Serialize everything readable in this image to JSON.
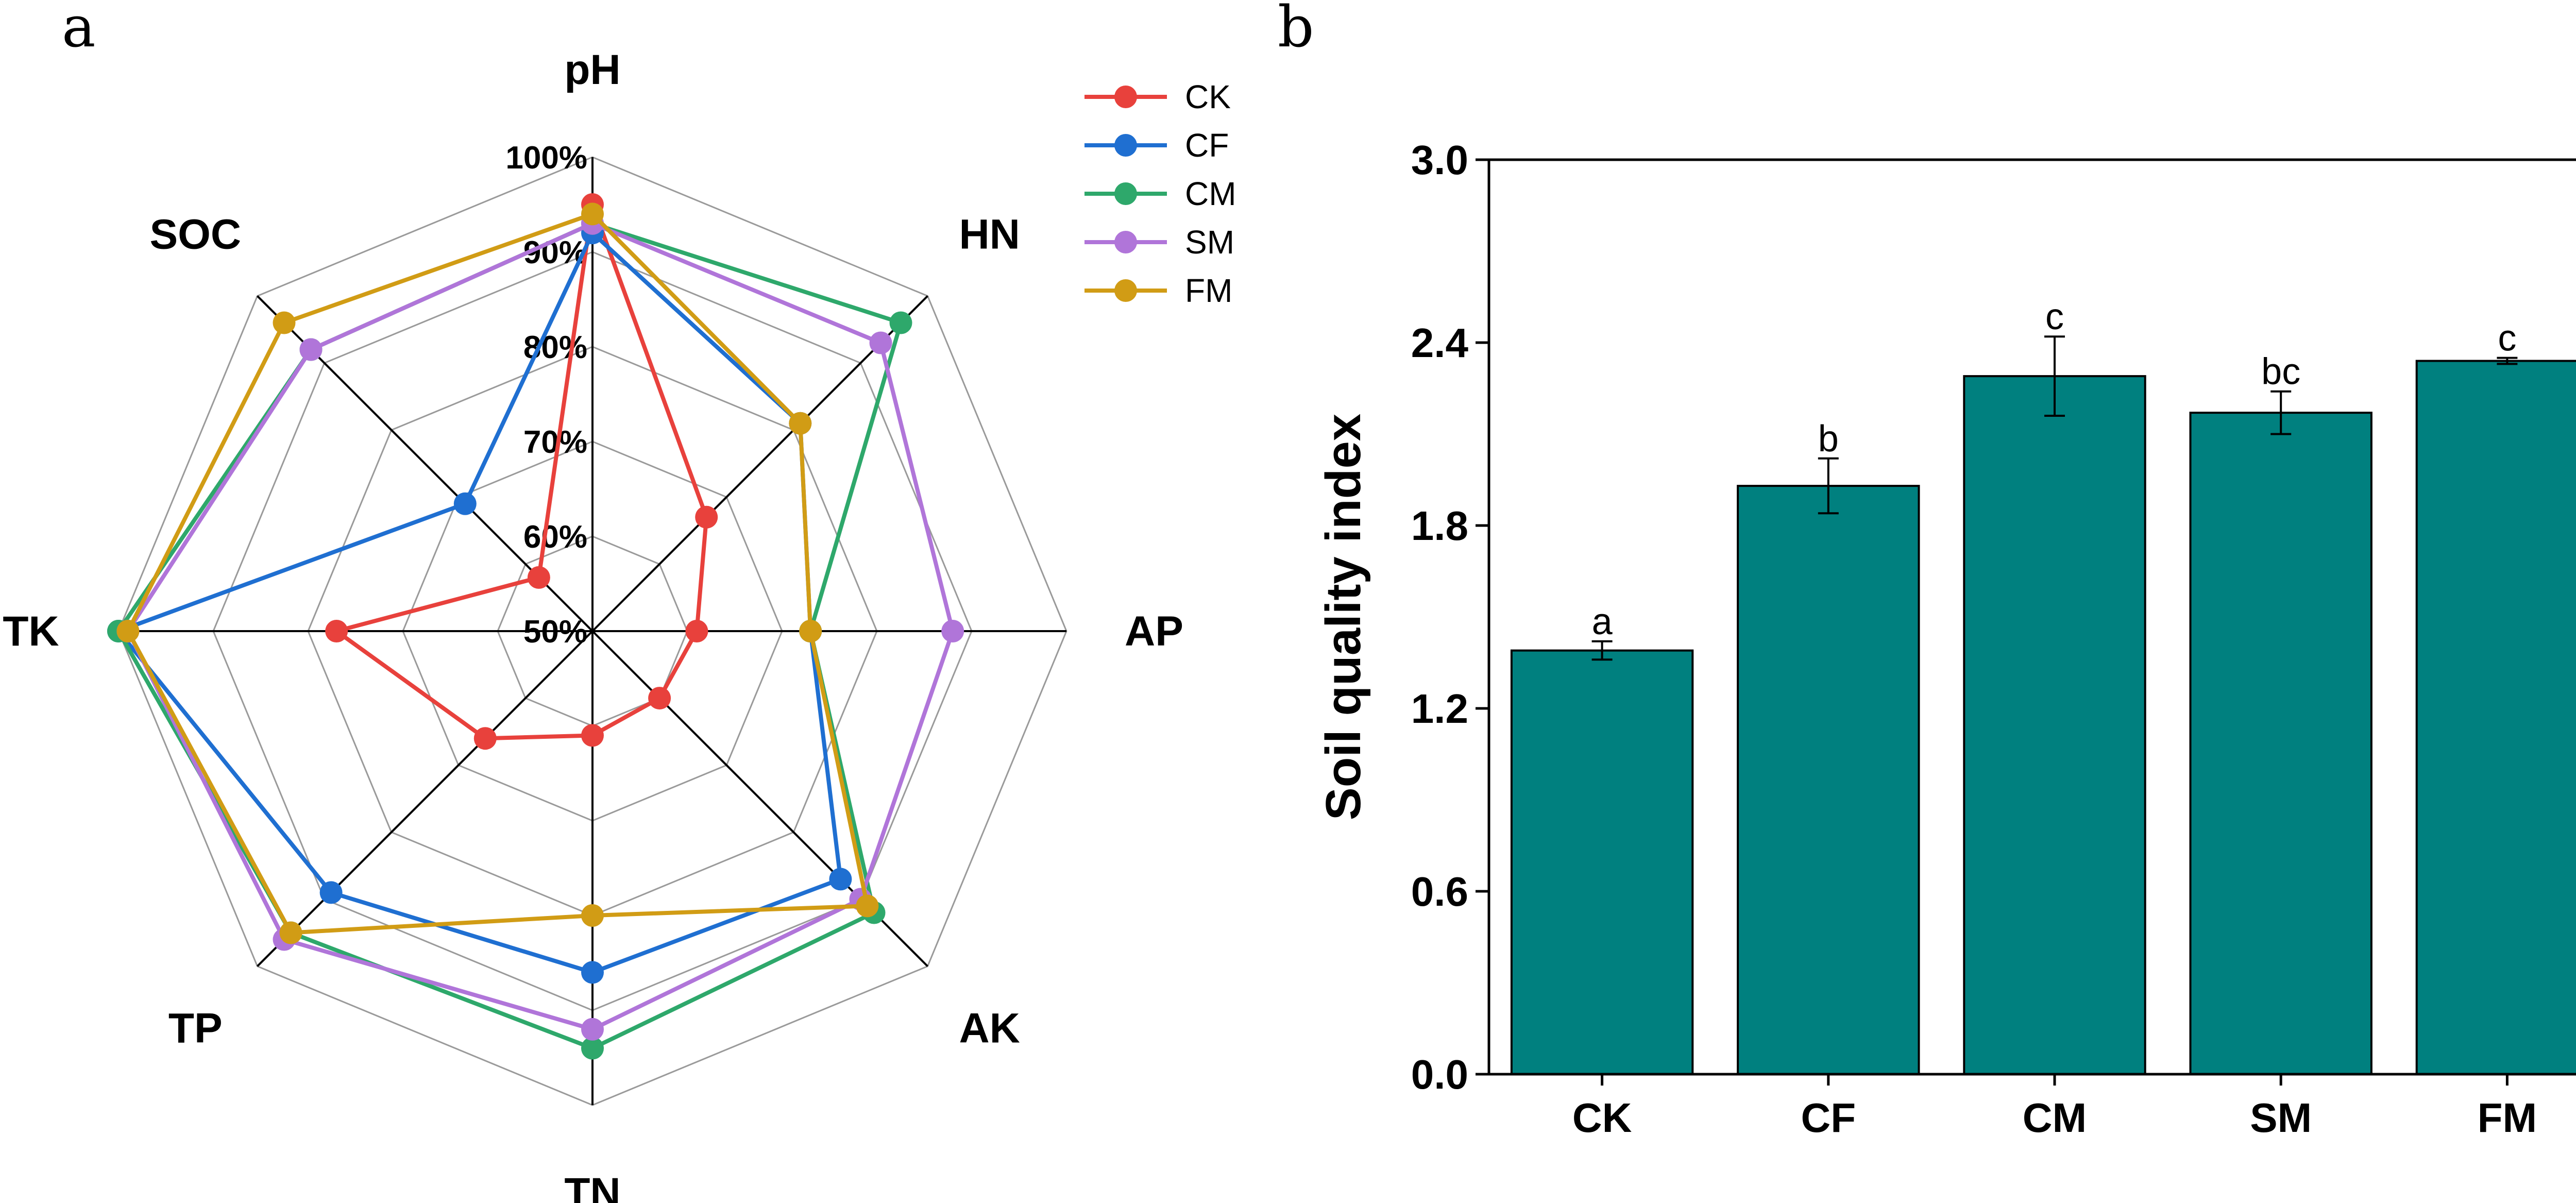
{
  "panels": {
    "a": "a",
    "b": "b"
  },
  "chart_data": [
    {
      "type": "radar",
      "panel": "a",
      "axes": [
        "pH",
        "HN",
        "AP",
        "AK",
        "TN",
        "TP",
        "TK",
        "SOC"
      ],
      "radial_range": [
        50,
        100
      ],
      "radial_ticks": [
        50,
        60,
        70,
        80,
        90,
        100
      ],
      "radial_tick_labels": [
        "50%",
        "60%",
        "70%",
        "80%",
        "90%",
        "100%"
      ],
      "series": [
        {
          "name": "CK",
          "color": "#e8413c",
          "values": [
            95,
            67,
            61,
            60,
            61,
            66,
            77,
            58
          ]
        },
        {
          "name": "CF",
          "color": "#1f6fd1",
          "values": [
            92,
            81,
            73,
            87,
            86,
            89,
            100,
            69
          ]
        },
        {
          "name": "CM",
          "color": "#2ea86b",
          "values": [
            93,
            96,
            73,
            92,
            94,
            95,
            100,
            92
          ]
        },
        {
          "name": "SM",
          "color": "#b075d9",
          "values": [
            93,
            93,
            88,
            90,
            92,
            96,
            99,
            92
          ]
        },
        {
          "name": "FM",
          "color": "#d19c15",
          "values": [
            94,
            81,
            73,
            91,
            80,
            95,
            99,
            96
          ]
        }
      ]
    },
    {
      "type": "bar",
      "panel": "b",
      "categories": [
        "CK",
        "CF",
        "CM",
        "SM",
        "FM"
      ],
      "values": [
        1.39,
        1.93,
        2.29,
        2.17,
        2.34
      ],
      "errors": [
        0.03,
        0.09,
        0.13,
        0.07,
        0.01
      ],
      "significance": [
        "a",
        "b",
        "c",
        "bc",
        "c"
      ],
      "bar_color": "#00807f",
      "ylabel": "Soil quality index",
      "ylim": [
        0.0,
        3.0
      ],
      "yticks": [
        0.0,
        0.6,
        1.2,
        1.8,
        2.4,
        3.0
      ],
      "ytick_labels": [
        "0.0",
        "0.6",
        "1.2",
        "1.8",
        "2.4",
        "3.0"
      ]
    }
  ]
}
